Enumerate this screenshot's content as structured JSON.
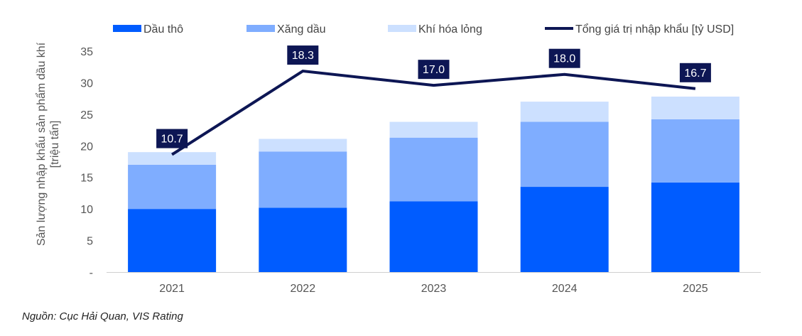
{
  "chart_data": {
    "type": "bar",
    "stacked": true,
    "categories": [
      "2021",
      "2022",
      "2023",
      "2024",
      "2025"
    ],
    "series": [
      {
        "name": "Dầu thô",
        "color": "#005CFF",
        "values": [
          10.0,
          10.2,
          11.2,
          13.5,
          14.2
        ]
      },
      {
        "name": "Xăng dầu",
        "color": "#7FADFF",
        "values": [
          7.0,
          8.9,
          10.1,
          10.3,
          10.0
        ]
      },
      {
        "name": "Khí hóa lỏng",
        "color": "#CCE0FF",
        "values": [
          2.0,
          2.0,
          2.5,
          3.2,
          3.6
        ]
      }
    ],
    "line_series": {
      "name": "Tổng giá trị nhập khẩu [tỷ USD]",
      "color": "#0D1654",
      "values": [
        10.7,
        18.3,
        17.0,
        18.0,
        16.7
      ],
      "labels": [
        "10.7",
        "18.3",
        "17.0",
        "18.0",
        "16.7"
      ]
    },
    "ylabel_lines": [
      "Sản lượng nhập khẩu sản phẩm dầu khí",
      "[triệu tấn]"
    ],
    "yticks": [
      "-",
      "5",
      "10",
      "15",
      "20",
      "25",
      "30",
      "35"
    ],
    "ylim": [
      0,
      35
    ],
    "grid": false,
    "legend_position": "top"
  },
  "source_note": "Nguồn: Cục Hải Quan, VIS Rating"
}
